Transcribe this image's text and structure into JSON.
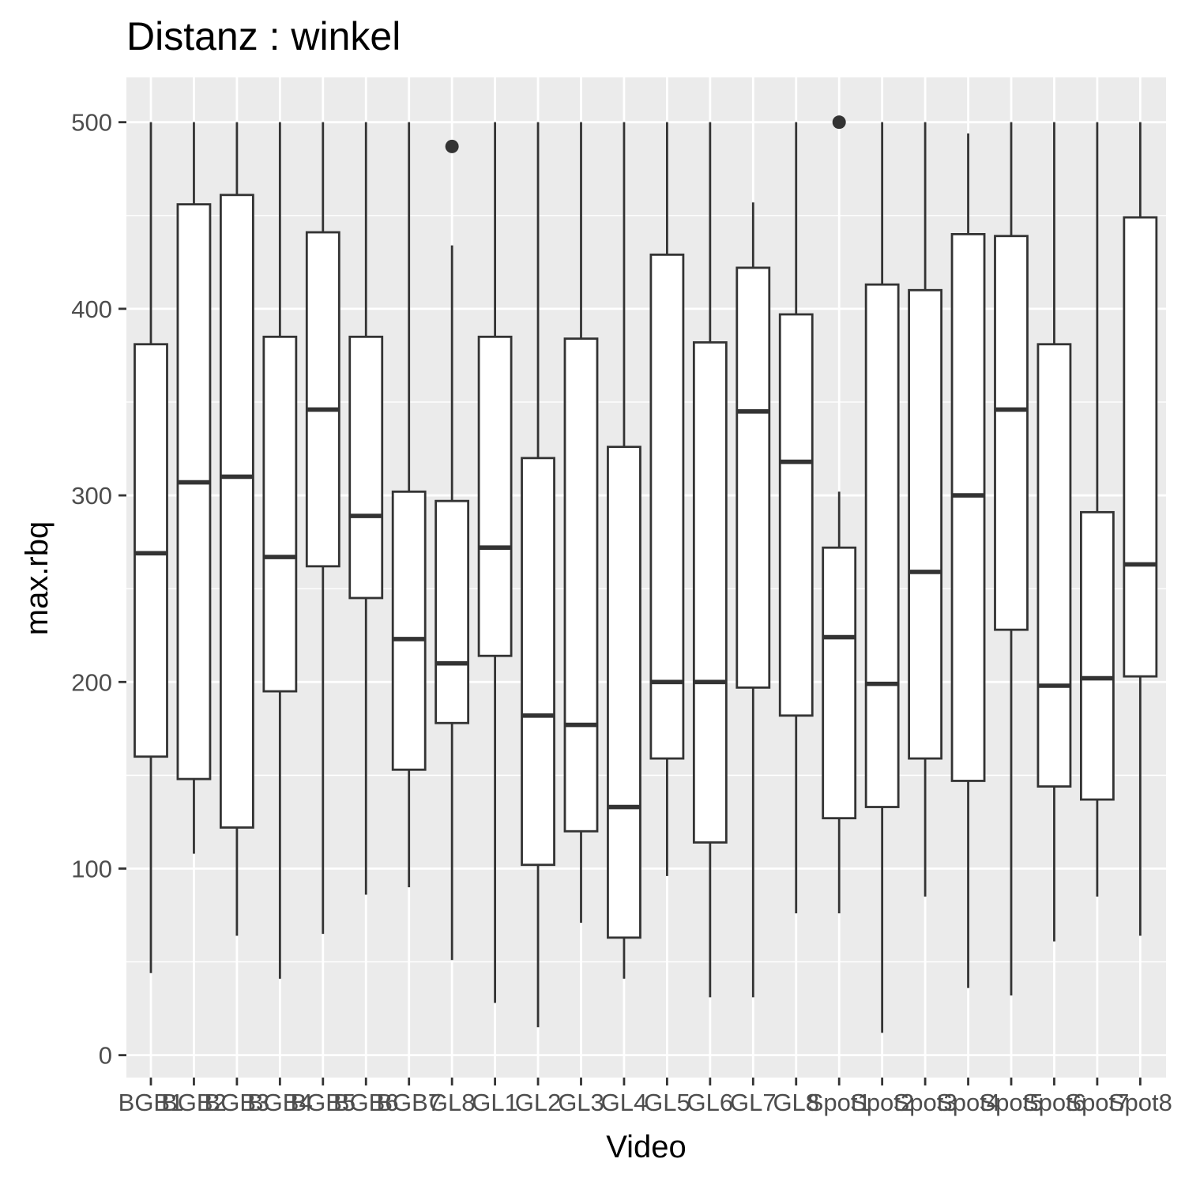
{
  "chart_data": {
    "type": "boxplot",
    "title": "Distanz : winkel",
    "xlabel": "Video",
    "ylabel": "max.rbq",
    "ylim": [
      -12,
      524
    ],
    "yticks": [
      0,
      100,
      200,
      300,
      400,
      500
    ],
    "grid": true,
    "legend": "none",
    "colors": {
      "panel_background": "#ebebeb",
      "grid_line": "#ffffff",
      "box_fill": "#ffffff",
      "box_stroke": "#333333",
      "outlier": "#333333",
      "tick_label": "#4d4d4d"
    },
    "categories": [
      "BGB1",
      "BGB2",
      "BGB3",
      "BGB4",
      "BGB5",
      "BGB6",
      "BGB7",
      "GL8",
      "GL1",
      "GL2",
      "GL3",
      "GL4",
      "GL5",
      "GL6",
      "GL7",
      "GL8",
      "Spot1",
      "Spot2",
      "Spot3",
      "Spot4",
      "Spot5",
      "Spot6",
      "Spot7",
      "Spot8"
    ],
    "boxes": [
      {
        "category": "BGB1",
        "lower": 44,
        "q1": 160,
        "median": 269,
        "q3": 381,
        "upper": 500,
        "outliers": []
      },
      {
        "category": "BGB2",
        "lower": 108,
        "q1": 148,
        "median": 307,
        "q3": 456,
        "upper": 500,
        "outliers": []
      },
      {
        "category": "BGB3",
        "lower": 64,
        "q1": 122,
        "median": 310,
        "q3": 461,
        "upper": 500,
        "outliers": []
      },
      {
        "category": "BGB4",
        "lower": 41,
        "q1": 195,
        "median": 267,
        "q3": 385,
        "upper": 500,
        "outliers": []
      },
      {
        "category": "BGB5",
        "lower": 65,
        "q1": 262,
        "median": 346,
        "q3": 441,
        "upper": 500,
        "outliers": []
      },
      {
        "category": "BGB6",
        "lower": 86,
        "q1": 245,
        "median": 289,
        "q3": 385,
        "upper": 500,
        "outliers": []
      },
      {
        "category": "BGB7",
        "lower": 90,
        "q1": 153,
        "median": 223,
        "q3": 302,
        "upper": 500,
        "outliers": []
      },
      {
        "category": "GL8",
        "lower": 51,
        "q1": 178,
        "median": 210,
        "q3": 297,
        "upper": 434,
        "outliers": [
          487
        ]
      },
      {
        "category": "GL1",
        "lower": 28,
        "q1": 214,
        "median": 272,
        "q3": 385,
        "upper": 500,
        "outliers": []
      },
      {
        "category": "GL2",
        "lower": 15,
        "q1": 102,
        "median": 182,
        "q3": 320,
        "upper": 500,
        "outliers": []
      },
      {
        "category": "GL3",
        "lower": 71,
        "q1": 120,
        "median": 177,
        "q3": 384,
        "upper": 500,
        "outliers": []
      },
      {
        "category": "GL4",
        "lower": 41,
        "q1": 63,
        "median": 133,
        "q3": 326,
        "upper": 500,
        "outliers": []
      },
      {
        "category": "GL5",
        "lower": 96,
        "q1": 159,
        "median": 200,
        "q3": 429,
        "upper": 500,
        "outliers": []
      },
      {
        "category": "GL6",
        "lower": 31,
        "q1": 114,
        "median": 200,
        "q3": 382,
        "upper": 500,
        "outliers": []
      },
      {
        "category": "GL7",
        "lower": 31,
        "q1": 197,
        "median": 345,
        "q3": 422,
        "upper": 457,
        "outliers": []
      },
      {
        "category": "GL8",
        "lower": 76,
        "q1": 182,
        "median": 318,
        "q3": 397,
        "upper": 500,
        "outliers": []
      },
      {
        "category": "Spot1",
        "lower": 76,
        "q1": 127,
        "median": 224,
        "q3": 272,
        "upper": 302,
        "outliers": [
          500
        ]
      },
      {
        "category": "Spot2",
        "lower": 12,
        "q1": 133,
        "median": 199,
        "q3": 413,
        "upper": 500,
        "outliers": []
      },
      {
        "category": "Spot3",
        "lower": 85,
        "q1": 159,
        "median": 259,
        "q3": 410,
        "upper": 500,
        "outliers": []
      },
      {
        "category": "Spot4",
        "lower": 36,
        "q1": 147,
        "median": 300,
        "q3": 440,
        "upper": 494,
        "outliers": []
      },
      {
        "category": "Spot5",
        "lower": 32,
        "q1": 228,
        "median": 346,
        "q3": 439,
        "upper": 500,
        "outliers": []
      },
      {
        "category": "Spot6",
        "lower": 61,
        "q1": 144,
        "median": 198,
        "q3": 381,
        "upper": 500,
        "outliers": []
      },
      {
        "category": "Spot7",
        "lower": 85,
        "q1": 137,
        "median": 202,
        "q3": 291,
        "upper": 500,
        "outliers": []
      },
      {
        "category": "Spot8",
        "lower": 64,
        "q1": 203,
        "median": 263,
        "q3": 449,
        "upper": 500,
        "outliers": []
      }
    ]
  }
}
